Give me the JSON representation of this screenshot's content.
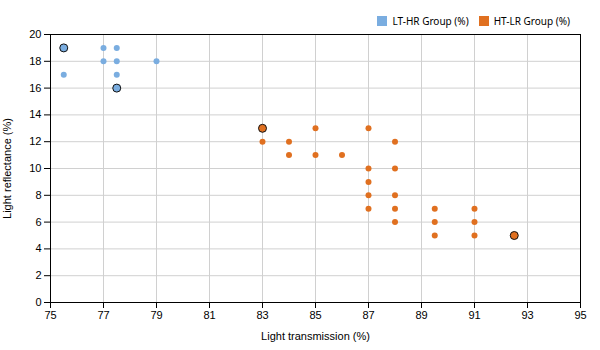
{
  "chart_data": {
    "type": "scatter",
    "xlabel": "Light transmission (%)",
    "ylabel": "Light reflectance (%)",
    "series": [
      {
        "name": "LT-HR Group (%)",
        "color": "#7aade0",
        "x": [
          75.5,
          75.5,
          77,
          77,
          77.5,
          77.5,
          77.5,
          77.5,
          79
        ],
        "values": [
          19,
          17,
          19,
          18,
          19,
          18,
          17,
          16,
          18
        ],
        "extreme": [
          true,
          false,
          false,
          false,
          false,
          false,
          false,
          true,
          false
        ]
      },
      {
        "name": "HT-LR Group (%)",
        "color": "#e07020",
        "x": [
          83,
          83,
          84,
          84,
          85,
          85,
          86,
          87,
          87,
          87,
          87,
          87,
          88,
          88,
          88,
          88,
          88,
          89.5,
          89.5,
          89.5,
          91,
          91,
          91,
          92.5
        ],
        "values": [
          13,
          12,
          12,
          11,
          13,
          11,
          11,
          13,
          10,
          9,
          8,
          7,
          12,
          10,
          8,
          7,
          6,
          7,
          6,
          5,
          7,
          6,
          5,
          5
        ],
        "extreme": [
          true,
          false,
          false,
          false,
          false,
          false,
          false,
          false,
          false,
          false,
          false,
          false,
          false,
          false,
          false,
          false,
          false,
          false,
          false,
          false,
          false,
          false,
          false,
          true
        ]
      }
    ],
    "xlim": [
      75,
      95
    ],
    "ylim": [
      0,
      20
    ],
    "xticks": [
      75,
      77,
      79,
      81,
      83,
      85,
      87,
      89,
      91,
      93,
      95
    ],
    "yticks": [
      0,
      2,
      4,
      6,
      8,
      10,
      12,
      14,
      16,
      18,
      20
    ],
    "grid": true,
    "legend": "upper right"
  }
}
